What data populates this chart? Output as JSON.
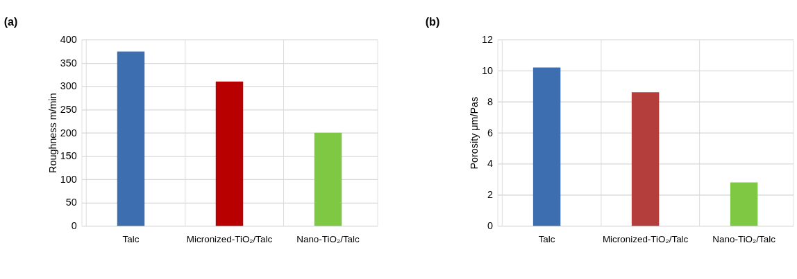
{
  "chart_data": [
    {
      "type": "bar",
      "title": "(a)",
      "ylabel": "Roughness m/min",
      "categories": [
        "Talc",
        "Micronized-TiO₂/Talc",
        "Nano-TiO₂/Talc"
      ],
      "values": [
        374,
        310,
        200
      ],
      "colors": [
        "#3d6fb0",
        "#b80000",
        "#7fc843"
      ],
      "ylim": [
        0,
        400
      ],
      "yticks": [
        0,
        50,
        100,
        150,
        200,
        250,
        300,
        350,
        400
      ],
      "grid": true
    },
    {
      "type": "bar",
      "title": "(b)",
      "ylabel": "Porosity μm/Pas",
      "categories": [
        "Talc",
        "Micronized-TiO₂/Talc",
        "Nano-TiO₂/Talc"
      ],
      "values": [
        10.2,
        8.6,
        2.8
      ],
      "colors": [
        "#3d6fb0",
        "#b33e3c",
        "#7fc843"
      ],
      "ylim": [
        0,
        12
      ],
      "yticks": [
        0,
        2,
        4,
        6,
        8,
        10,
        12
      ],
      "grid": true
    }
  ]
}
